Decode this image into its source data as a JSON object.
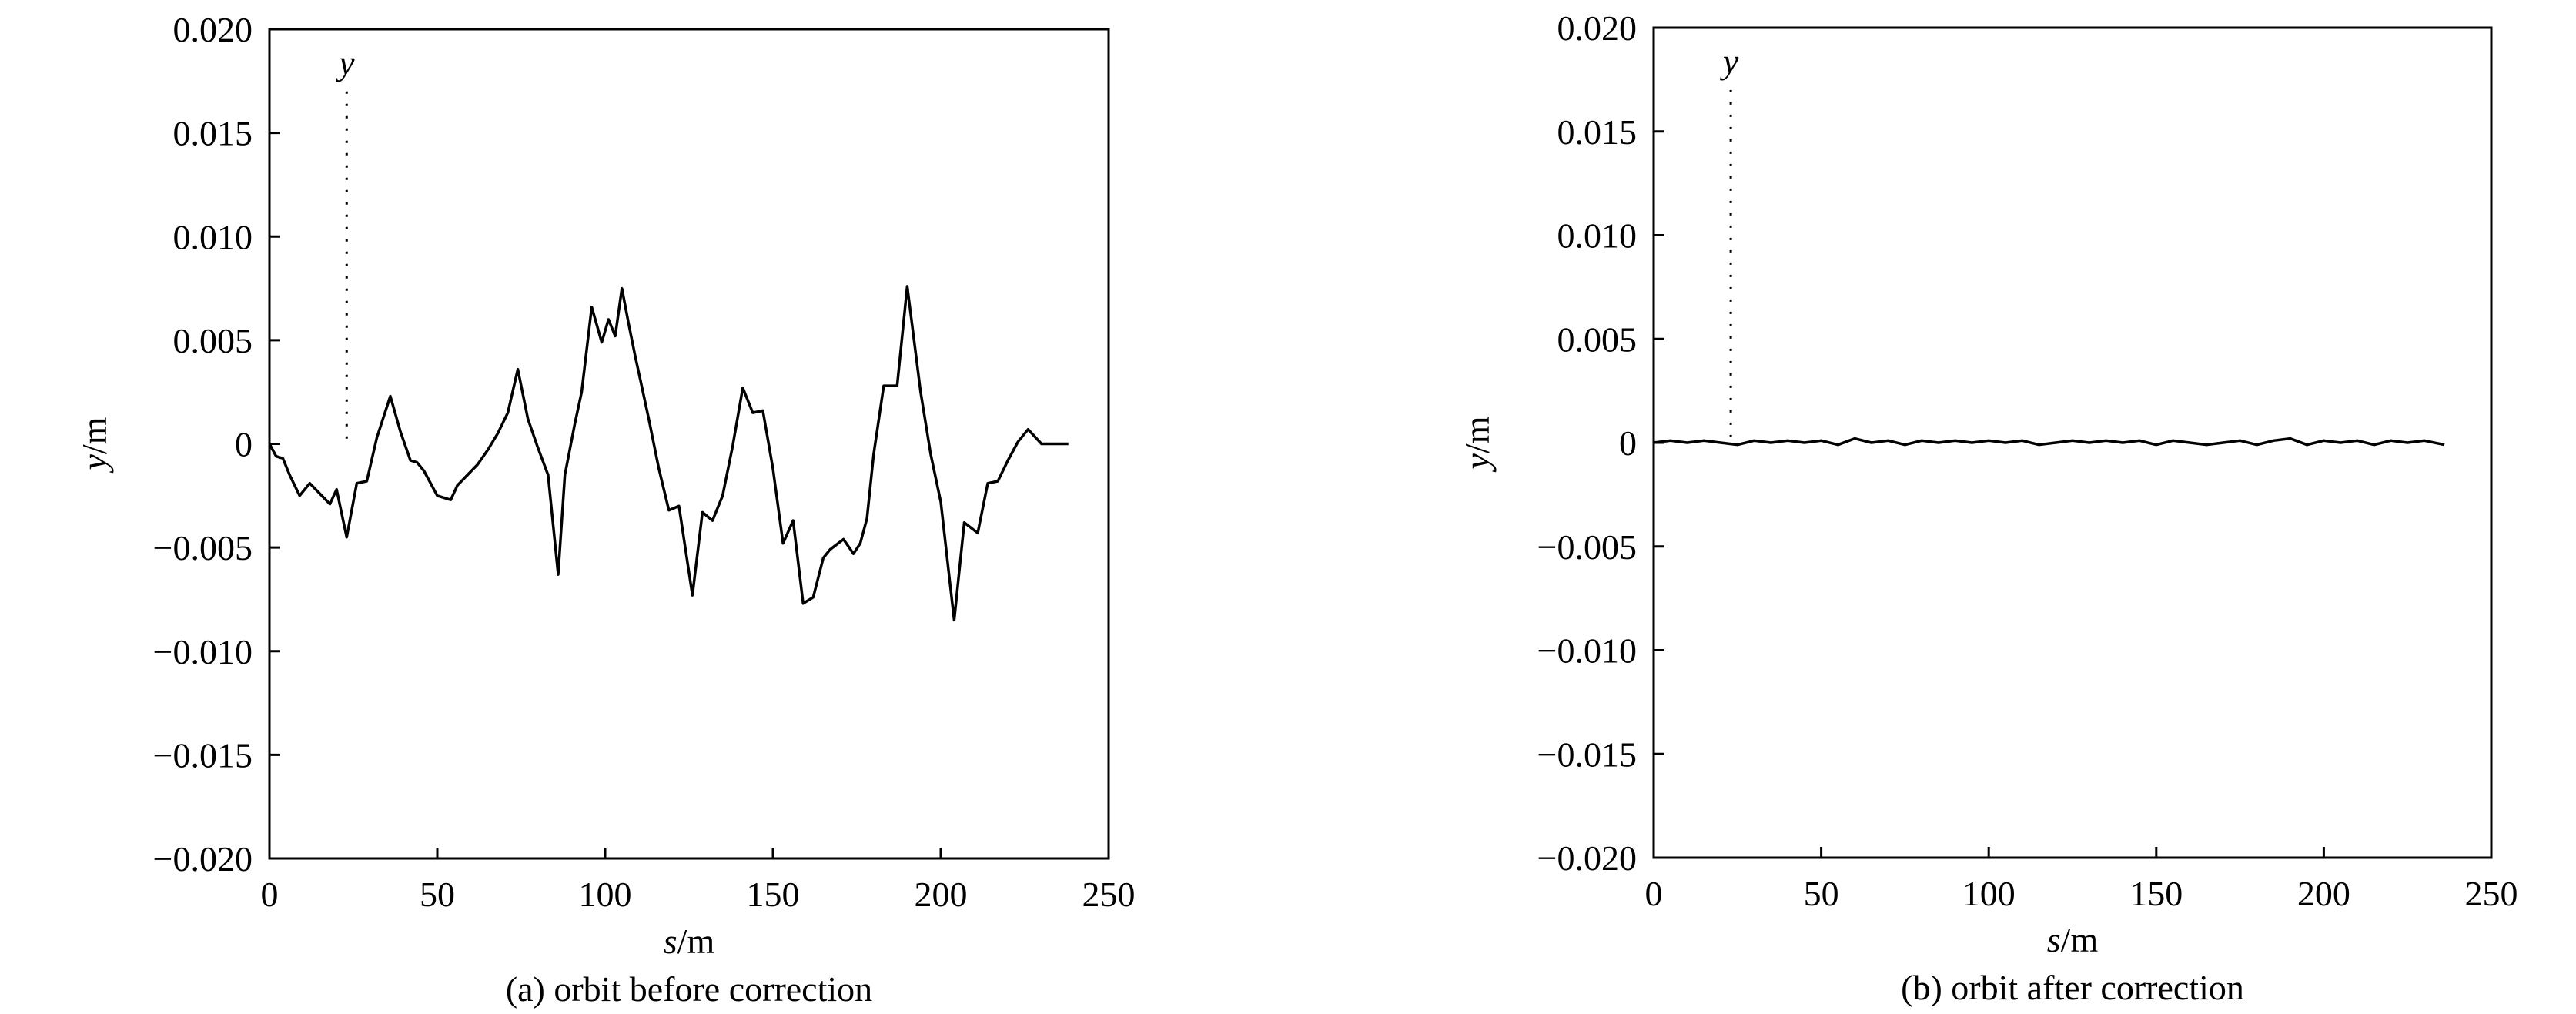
{
  "chart_data": [
    {
      "type": "line",
      "caption": "(a) orbit before correction",
      "xlabel": {
        "var": "s",
        "unit": "/m"
      },
      "ylabel": {
        "var": "y",
        "unit": "/m"
      },
      "xlim": [
        0,
        250
      ],
      "ylim": [
        -0.02,
        0.02
      ],
      "xticks": [
        "0",
        "50",
        "100",
        "150",
        "200",
        "250"
      ],
      "yticks": [
        "0.020",
        "0.015",
        "0.010",
        "0.005",
        "0",
        "−0.005",
        "−0.010",
        "−0.015",
        "−0.020"
      ],
      "ytick_values": [
        0.02,
        0.015,
        0.01,
        0.005,
        0,
        -0.005,
        -0.01,
        -0.015,
        -0.02
      ],
      "xtick_values": [
        0,
        50,
        100,
        150,
        200,
        250
      ],
      "grid": false,
      "annotation": {
        "text": "y",
        "x": 23,
        "y_from": 0,
        "y_to": 0.017,
        "style": "dotted"
      },
      "series": [
        {
          "x": [
            0,
            2,
            4,
            6,
            9,
            12,
            15,
            18,
            20,
            23,
            26,
            29,
            32,
            36,
            39,
            42,
            44,
            46,
            50,
            54,
            56,
            59,
            62,
            65,
            68,
            71,
            74,
            77,
            80,
            83,
            86,
            88,
            91,
            93,
            96,
            99,
            101,
            103,
            105,
            107,
            109,
            111,
            113,
            116,
            119,
            122,
            126,
            129,
            132,
            135,
            138,
            141,
            144,
            147,
            150,
            153,
            156,
            159,
            162,
            165,
            167,
            171,
            174,
            176,
            178,
            180,
            183,
            187,
            190,
            194,
            197,
            200,
            204,
            207,
            211,
            214,
            217,
            220,
            223,
            226,
            230,
            234,
            236,
            238
          ],
          "y": [
            0,
            -0.0006,
            -0.0007,
            -0.0015,
            -0.0025,
            -0.0019,
            -0.0024,
            -0.0029,
            -0.0022,
            -0.0045,
            -0.0019,
            -0.0018,
            0.0003,
            0.0023,
            0.0006,
            -0.0008,
            -0.0009,
            -0.0013,
            -0.0025,
            -0.0027,
            -0.002,
            -0.0015,
            -0.001,
            -0.0003,
            0.0005,
            0.0015,
            0.0036,
            0.0012,
            -0.0002,
            -0.0015,
            -0.0063,
            -0.0015,
            0.001,
            0.0025,
            0.0066,
            0.0049,
            0.006,
            0.0052,
            0.0075,
            0.0058,
            0.0042,
            0.0027,
            0.0012,
            -0.0012,
            -0.0032,
            -0.003,
            -0.0073,
            -0.0033,
            -0.0037,
            -0.0025,
            -0.0001,
            0.0027,
            0.0015,
            0.0016,
            -0.0012,
            -0.0048,
            -0.0037,
            -0.0077,
            -0.0074,
            -0.0055,
            -0.0051,
            -0.0046,
            -0.0053,
            -0.0048,
            -0.0036,
            -0.0005,
            0.0028,
            0.0028,
            0.0076,
            0.0025,
            -0.0005,
            -0.0028,
            -0.0085,
            -0.0038,
            -0.0043,
            -0.0019,
            -0.0018,
            -0.0008,
            0.0001,
            0.0007,
            0,
            0,
            0,
            0
          ]
        }
      ]
    },
    {
      "type": "line",
      "caption": "(b) orbit after correction",
      "xlabel": {
        "var": "s",
        "unit": "/m"
      },
      "ylabel": {
        "var": "y",
        "unit": "/m"
      },
      "xlim": [
        0,
        250
      ],
      "ylim": [
        -0.02,
        0.02
      ],
      "xticks": [
        "0",
        "50",
        "100",
        "150",
        "200",
        "250"
      ],
      "yticks": [
        "0.020",
        "0.015",
        "0.010",
        "0.005",
        "0",
        "−0.005",
        "−0.010",
        "−0.015",
        "−0.020"
      ],
      "ytick_values": [
        0.02,
        0.015,
        0.01,
        0.005,
        0,
        -0.005,
        -0.01,
        -0.015,
        -0.02
      ],
      "xtick_values": [
        0,
        50,
        100,
        150,
        200,
        250
      ],
      "grid": false,
      "annotation": {
        "text": "y",
        "x": 23,
        "y_from": 0,
        "y_to": 0.017,
        "style": "dotted"
      },
      "series": [
        {
          "x": [
            0,
            5,
            10,
            15,
            20,
            25,
            30,
            35,
            40,
            45,
            50,
            55,
            60,
            65,
            70,
            75,
            80,
            85,
            90,
            95,
            100,
            105,
            110,
            115,
            120,
            125,
            130,
            135,
            140,
            145,
            150,
            155,
            160,
            165,
            170,
            175,
            180,
            185,
            190,
            195,
            200,
            205,
            210,
            215,
            220,
            225,
            230,
            236
          ],
          "y": [
            0,
            0.0001,
            0,
            0.0001,
            0,
            -0.0001,
            0.0001,
            0,
            0.0001,
            0,
            0.0001,
            -0.0001,
            0.0002,
            0,
            0.0001,
            -0.0001,
            0.0001,
            0,
            0.0001,
            0,
            0.0001,
            0,
            0.0001,
            -0.0001,
            0,
            0.0001,
            0,
            0.0001,
            0,
            0.0001,
            -0.0001,
            0.0001,
            0,
            -0.0001,
            0,
            0.0001,
            -0.0001,
            0.0001,
            0.0002,
            -0.0001,
            0.0001,
            0,
            0.0001,
            -0.0001,
            0.0001,
            0,
            0.0001,
            -0.0001
          ]
        }
      ]
    }
  ]
}
